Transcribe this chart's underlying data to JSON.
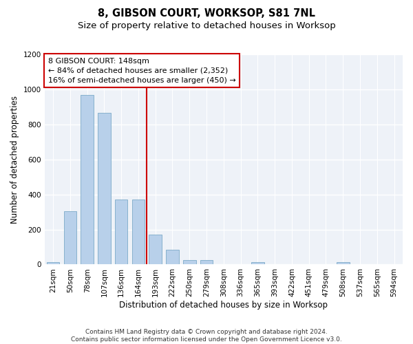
{
  "title": "8, GIBSON COURT, WORKSOP, S81 7NL",
  "subtitle": "Size of property relative to detached houses in Worksop",
  "xlabel": "Distribution of detached houses by size in Worksop",
  "ylabel": "Number of detached properties",
  "categories": [
    "21sqm",
    "50sqm",
    "78sqm",
    "107sqm",
    "136sqm",
    "164sqm",
    "193sqm",
    "222sqm",
    "250sqm",
    "279sqm",
    "308sqm",
    "336sqm",
    "365sqm",
    "393sqm",
    "422sqm",
    "451sqm",
    "479sqm",
    "508sqm",
    "537sqm",
    "565sqm",
    "594sqm"
  ],
  "values": [
    12,
    305,
    970,
    868,
    370,
    370,
    172,
    85,
    25,
    25,
    0,
    0,
    12,
    0,
    0,
    0,
    0,
    12,
    0,
    0,
    0
  ],
  "bar_color": "#b8d0ea",
  "bar_edge_color": "#6a9fc0",
  "vline_x": 5.5,
  "vline_color": "#cc0000",
  "annotation_text": "8 GIBSON COURT: 148sqm\n← 84% of detached houses are smaller (2,352)\n16% of semi-detached houses are larger (450) →",
  "annotation_box_color": "#ffffff",
  "annotation_box_edge_color": "#cc0000",
  "ylim": [
    0,
    1200
  ],
  "yticks": [
    0,
    200,
    400,
    600,
    800,
    1000,
    1200
  ],
  "footer": "Contains HM Land Registry data © Crown copyright and database right 2024.\nContains public sector information licensed under the Open Government Licence v3.0.",
  "background_color": "#eef2f8",
  "fig_background_color": "#ffffff",
  "grid_color": "#ffffff",
  "title_fontsize": 10.5,
  "subtitle_fontsize": 9.5,
  "axis_label_fontsize": 8.5,
  "tick_fontsize": 7.5,
  "annotation_fontsize": 8,
  "footer_fontsize": 6.5
}
